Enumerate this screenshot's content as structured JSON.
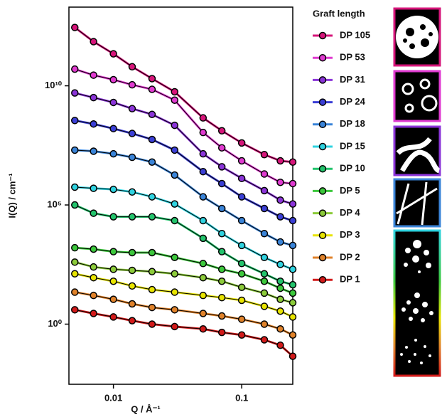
{
  "chart_data": {
    "type": "line",
    "x_label": "Q / Å⁻¹",
    "y_label": "I(Q) / cm⁻¹",
    "xscale": "log",
    "yscale": "log",
    "xlim": [
      0.0045,
      0.25
    ],
    "ylim": [
      0.003,
      20000000000000.0
    ],
    "xticks": [
      0.01,
      0.1
    ],
    "yticks": [
      {
        "value": 1,
        "label": "10⁰"
      },
      {
        "value": 100000,
        "label": "10⁵"
      },
      {
        "value": 10000000000,
        "label": "10¹⁰"
      }
    ],
    "legend_title": "Graft length",
    "legend_position": "right",
    "x": [
      0.005,
      0.007,
      0.01,
      0.014,
      0.02,
      0.03,
      0.05,
      0.07,
      0.1,
      0.15,
      0.2,
      0.25
    ],
    "series": [
      {
        "name": "DP 105",
        "color": "#d6157a",
        "values": [
          2800000000000.0,
          710000000000.0,
          220000000000.0,
          63000000000.0,
          20000000000.0,
          5600000000.0,
          450000000.0,
          130000000.0,
          40000000.0,
          13000000.0,
          7100000.0,
          6300000.0
        ]
      },
      {
        "name": "DP 53",
        "color": "#e03ad0",
        "values": [
          50000000000.0,
          28000000000.0,
          18000000000.0,
          11000000000.0,
          7100000000.0,
          2500000000.0,
          110000000.0,
          25000000.0,
          7100000.0,
          2000000.0,
          890000.0,
          790000.0
        ]
      },
      {
        "name": "DP 31",
        "color": "#8b34d8",
        "values": [
          5000000000.0,
          3200000000.0,
          2000000000.0,
          1100000000.0,
          630000000.0,
          220000000.0,
          14000000.0,
          4000000.0,
          1300000.0,
          400000.0,
          160000.0,
          110000.0
        ]
      },
      {
        "name": "DP 24",
        "color": "#3b3fd6",
        "values": [
          350000000.0,
          250000000.0,
          160000000.0,
          100000000.0,
          56000000.0,
          20000000.0,
          2500000.0,
          790000.0,
          220000.0,
          71000.0,
          32000.0,
          22000.0
        ]
      },
      {
        "name": "DP 18",
        "color": "#3a84d8",
        "values": [
          20000000.0,
          18000000.0,
          14000000.0,
          10000000.0,
          6300000.0,
          1800000.0,
          220000.0,
          71000.0,
          22000.0,
          6300,
          2800,
          2000
        ]
      },
      {
        "name": "DP 15",
        "color": "#2fd3e0",
        "values": [
          560000.0,
          500000.0,
          450000.0,
          350000.0,
          220000.0,
          110000.0,
          22000.0,
          6300,
          2000,
          630,
          320,
          200
        ]
      },
      {
        "name": "DP 10",
        "color": "#23c46c",
        "values": [
          100000.0,
          45000.0,
          32000.0,
          32000.0,
          32000.0,
          22000.0,
          4000,
          1100,
          350,
          130,
          63,
          45
        ]
      },
      {
        "name": "DP 5",
        "color": "#3cc83c",
        "values": [
          1600,
          1400,
          1100,
          1000,
          1000,
          630,
          350,
          200,
          130,
          63,
          32,
          20
        ]
      },
      {
        "name": "DP 4",
        "color": "#8ccb3a",
        "values": [
          400,
          250,
          200,
          180,
          160,
          130,
          89,
          63,
          35,
          20,
          11,
          7.9
        ]
      },
      {
        "name": "DP 3",
        "color": "#e8e400",
        "values": [
          130,
          89,
          63,
          40,
          28,
          22,
          16,
          13,
          10,
          5.6,
          3.5,
          2.0
        ]
      },
      {
        "name": "DP 2",
        "color": "#e0822a",
        "values": [
          22,
          16,
          11,
          7.1,
          5.0,
          4.0,
          2.8,
          2.2,
          1.6,
          1,
          0.63,
          0.35
        ]
      },
      {
        "name": "DP 1",
        "color": "#d21a1a",
        "values": [
          4.0,
          2.8,
          2.0,
          1.4,
          1.0,
          0.79,
          0.63,
          0.45,
          0.35,
          0.22,
          0.13,
          0.045
        ]
      }
    ]
  }
}
